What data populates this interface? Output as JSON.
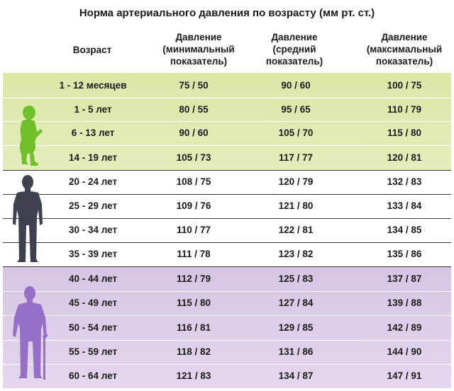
{
  "title": "Норма артериального давления по возрасту (мм рт. ст.)",
  "headers": {
    "age": "Возраст",
    "min": "Давление\n(минимальный\nпоказатель)",
    "mid": "Давление\n(средний\nпоказатель)",
    "max": "Давление\n(максимальный\nпоказатель)"
  },
  "rows": [
    {
      "age": "1 - 12 месяцев",
      "min": "75 / 50",
      "mid": "90 / 60",
      "max": "100 / 75"
    },
    {
      "age": "1 - 5 лет",
      "min": "80 / 55",
      "mid": "95 / 65",
      "max": "110 / 79"
    },
    {
      "age": "6 - 13 лет",
      "min": "90 / 60",
      "mid": "105 / 70",
      "max": "115 / 80"
    },
    {
      "age": "14 - 19 лет",
      "min": "105 / 73",
      "mid": "117 / 77",
      "max": "120 / 81"
    },
    {
      "age": "20 - 24 лет",
      "min": "108 / 75",
      "mid": "120 / 79",
      "max": "132 / 83"
    },
    {
      "age": "25 - 29 лет",
      "min": "109 / 76",
      "mid": "121 / 80",
      "max": "133 / 84"
    },
    {
      "age": "30 - 34 лет",
      "min": "110 / 77",
      "mid": "122 / 81",
      "max": "134 / 85"
    },
    {
      "age": "35 - 39 лет",
      "min": "111 / 78",
      "mid": "123 / 82",
      "max": "135 / 86"
    },
    {
      "age": "40 - 44 лет",
      "min": "112 / 79",
      "mid": "125 / 83",
      "max": "137 / 87"
    },
    {
      "age": "45 - 49 лет",
      "min": "115 / 80",
      "mid": "127 / 84",
      "max": "139 / 88"
    },
    {
      "age": "50 - 54 лет",
      "min": "116 / 81",
      "mid": "129 / 85",
      "max": "142 / 89"
    },
    {
      "age": "55 - 59 лет",
      "min": "118 / 82",
      "mid": "131 / 86",
      "max": "144 / 90"
    },
    {
      "age": "60 - 64 лет",
      "min": "121 / 83",
      "mid": "134 / 87",
      "max": "147 / 91"
    }
  ],
  "colors": {
    "child_band": "#dbe6a6",
    "elder_band": "#d5c5e3",
    "child_figure": "#6fc02a",
    "adult_figure": "#3d4150",
    "elder_figure": "#9670c6"
  },
  "icons": [
    "child-silhouette-icon",
    "man-silhouette-icon",
    "elderly-man-with-cane-icon"
  ]
}
